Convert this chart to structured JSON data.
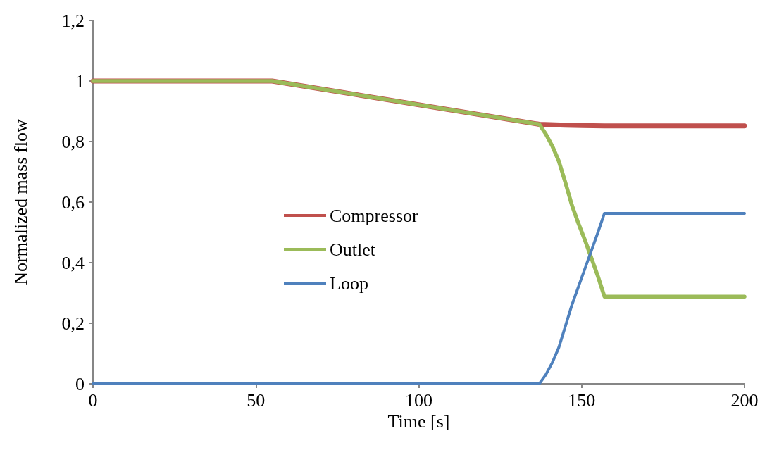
{
  "chart_data": {
    "type": "line",
    "xlabel": "Time [s]",
    "ylabel": "Normalized mass flow",
    "xlim": [
      0,
      200
    ],
    "xticks": [
      0,
      50,
      100,
      150,
      200
    ],
    "ylim": [
      0,
      1.2
    ],
    "yticks": [
      0,
      {
        "value": 0.2,
        "label": "0,2"
      },
      {
        "value": 0.4,
        "label": "0,4"
      },
      {
        "value": 0.6,
        "label": "0,6"
      },
      {
        "value": 0.8,
        "label": "0,8"
      },
      1,
      {
        "value": 1.2,
        "label": "1,2"
      }
    ],
    "grid": false,
    "legend": "left",
    "marker": "none",
    "line_style": "solid",
    "series": [
      {
        "name": "Compressor",
        "color": "#c0504d",
        "x": [
          0,
          55,
          137,
          145,
          150,
          157,
          200
        ],
        "values": [
          1,
          1,
          0.857,
          0.854,
          0.853,
          0.852,
          0.852
        ]
      },
      {
        "name": "Outlet",
        "color": "#9bbb59",
        "x": [
          0,
          55,
          137,
          139,
          141,
          143,
          145,
          147,
          149,
          151,
          153,
          155,
          157,
          200
        ],
        "values": [
          1,
          1,
          0.857,
          0.825,
          0.785,
          0.735,
          0.665,
          0.59,
          0.53,
          0.475,
          0.415,
          0.355,
          0.288,
          0.288
        ]
      },
      {
        "name": "Loop",
        "color": "#4f81bd",
        "x": [
          0,
          137,
          139,
          141,
          143,
          145,
          147,
          149,
          151,
          153,
          155,
          157,
          200
        ],
        "values": [
          0,
          0,
          0.03,
          0.07,
          0.12,
          0.19,
          0.26,
          0.32,
          0.38,
          0.44,
          0.5,
          0.563,
          0.563
        ]
      }
    ]
  }
}
